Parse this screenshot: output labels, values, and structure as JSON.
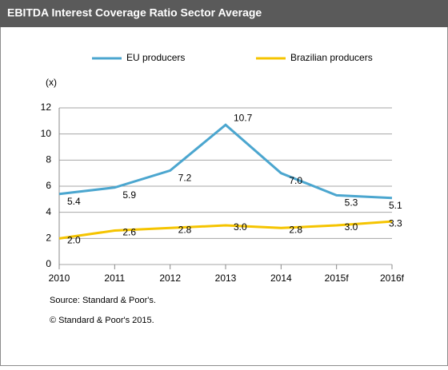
{
  "chart_data": {
    "type": "line",
    "title": "EBITDA Interest Coverage Ratio Sector Average",
    "y_label": "(x)",
    "categories": [
      "2010",
      "2011",
      "2012",
      "2013",
      "2014",
      "2015f",
      "2016f"
    ],
    "series": [
      {
        "name": "EU producers",
        "color": "#4ba6cf",
        "values": [
          5.4,
          5.9,
          7.2,
          10.7,
          7.0,
          5.3,
          5.1
        ],
        "value_labels": [
          "5.4",
          "5.9",
          "7.2",
          "10.7",
          "7.0",
          "5.3",
          "5.1"
        ]
      },
      {
        "name": "Brazilian producers",
        "color": "#f5c400",
        "values": [
          2.0,
          2.6,
          2.8,
          3.0,
          2.8,
          3.0,
          3.3
        ],
        "value_labels": [
          "2.0",
          "2.6",
          "2.8",
          "3.0",
          "2.8",
          "3.0",
          "3.3"
        ]
      }
    ],
    "ylim": [
      0,
      12
    ],
    "yticks": [
      0,
      2,
      4,
      6,
      8,
      10,
      12
    ],
    "grid": true,
    "legend": "top",
    "notes": [
      "Source: Standard & Poor's.",
      "© Standard & Poor's 2015."
    ]
  }
}
